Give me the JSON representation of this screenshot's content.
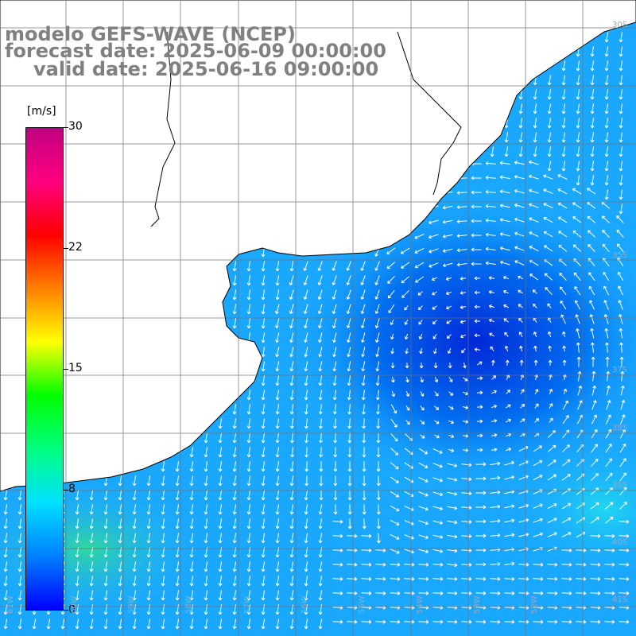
{
  "title": {
    "model": "modelo GEFS-WAVE (NCEP)",
    "forecast": "forecast date: 2025-06-09 00:00:00",
    "valid": "valid date: 2025-06-16 09:00:00"
  },
  "colorbar": {
    "unit": "[m/s]",
    "min": 0,
    "max": 30,
    "ticks": [
      "30",
      "22",
      "15",
      "8",
      "0"
    ],
    "colors": [
      "#0000ff",
      "#0080ff",
      "#00e0ff",
      "#00ff80",
      "#00ff00",
      "#ffff00",
      "#ff8000",
      "#ff0000",
      "#ff0080",
      "#c00080"
    ]
  },
  "map": {
    "latitude_labels": [
      "30S",
      "35S",
      "37S",
      "38S",
      "39S",
      "40S",
      "41S"
    ],
    "longitude_labels": [
      "61W",
      "60W",
      "59W",
      "58W",
      "57W",
      "56W",
      "55W",
      "54W",
      "53W",
      "52W"
    ],
    "grid": true,
    "field": "wind speed and direction arrows",
    "low_center_color": "#0030e0",
    "ocean_base_color": "#1aa8ff",
    "land_color": "#ffffff"
  }
}
